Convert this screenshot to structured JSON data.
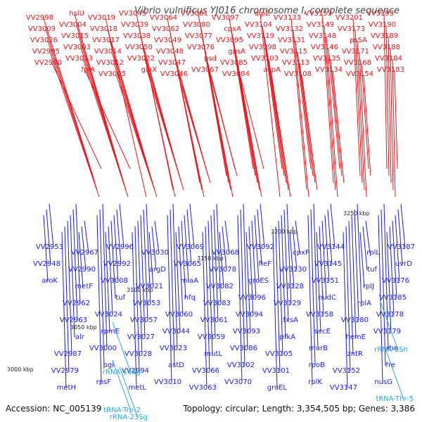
{
  "title": "Vibrio vulnificus YJ016 chromosome I, complete sequence",
  "footer": {
    "accession": "Accession: NC_005139",
    "summary": "Topology: circular; Length: 3,354,505 bp; Genes: 3,386"
  },
  "colors": {
    "forward": "#e8151b",
    "reverse": "#1a1aeb",
    "rna": "#29a7d8",
    "backbone": "#8a8a8a"
  },
  "ticks": [
    "3000 kbp",
    "3050 kbp",
    "3100 kbp",
    "3150 kbp",
    "3200 kbp",
    "3250 kbp"
  ],
  "labels_forward": [
    "VV3193",
    "VV3190",
    "VV3189",
    "VV3188",
    "VV3184",
    "VV3183",
    "VV3201",
    "VV3173",
    "psSA",
    "VV3171",
    "VV3168",
    "VV3154",
    "VV3153",
    "VV3149",
    "VV3148",
    "VV3146",
    "VV3135",
    "VV3134",
    "VV3133",
    "VV3132",
    "VV3131",
    "VV3115",
    "VV3113",
    "VV3108",
    "dipZ",
    "VV3104",
    "VV3119",
    "VV3098",
    "VV3103",
    "aspA",
    "VV3097",
    "cpxA",
    "VV3095",
    "gpsA",
    "VV3085",
    "VV3084",
    "VV3081",
    "VV3080",
    "VV3077",
    "VV3076",
    "psd",
    "VV3067",
    "VV3064",
    "VV3062",
    "VV3049",
    "VV3048",
    "VV3047",
    "VV3046",
    "VV3045",
    "VV3039",
    "VV3038",
    "VV3050",
    "VV3022",
    "glpX",
    "VV3019",
    "VV3018",
    "VV3017",
    "VV3014",
    "VV3012",
    "VV3005",
    "hslU",
    "VV3004",
    "VV3015",
    "VV3003",
    "VV3013",
    "fpiA",
    "VV2998",
    "VV3009",
    "VV3026",
    "VV2995",
    "VV2980"
  ],
  "labels_reverse": [
    "VV3187",
    "uvrD",
    "VV3176",
    "VV3185",
    "VV3178",
    "VV3179",
    "rho",
    "fre",
    "nusG",
    "rplL",
    "tuf",
    "rplJ",
    "rplA",
    "VV3180",
    "hemE",
    "zntR",
    "VV3152",
    "VV3147",
    "VV3144",
    "VV3145",
    "VV3151",
    "nudC",
    "VV3158",
    "secE",
    "murB",
    "rpoB",
    "rplK",
    "cpxP",
    "VV3130",
    "VV3128",
    "VV3129",
    "fxsA",
    "pfkA",
    "VV3105",
    "VV3101",
    "groEL",
    "VV3092",
    "fieF",
    "groES",
    "VV3096",
    "VV3094",
    "VV3093",
    "VV3086",
    "VV3102",
    "VV3070",
    "VV3068",
    "VV3078",
    "VV3082",
    "VV3083",
    "VV3061",
    "VV3059",
    "mutL",
    "VV3066",
    "VV3063",
    "VV3069",
    "VV3065",
    "miaA",
    "hfq",
    "VV3060",
    "VV3044",
    "VV3023",
    "astD",
    "VV3010",
    "VV3030",
    "argD",
    "VV3021",
    "VV3053",
    "VV3057",
    "VV3027",
    "VV3028",
    "VV2994",
    "metL",
    "VV2996",
    "VV2992",
    "VV3008",
    "tuf",
    "VV3024",
    "rpmE",
    "VV3000",
    "pgi",
    "rpsF",
    "VV2967",
    "VV2990",
    "metF",
    "VV2962",
    "VV2963",
    "alr",
    "VV2987",
    "VV2979",
    "metH",
    "VV2953",
    "VV2948",
    "aroK"
  ],
  "labels_rna": [
    "rRNA-5Sh",
    "tRNA-Thr-5",
    "rRNA-16Sg",
    "tRNA-Trp-2",
    "rRNA-23Sg"
  ]
}
